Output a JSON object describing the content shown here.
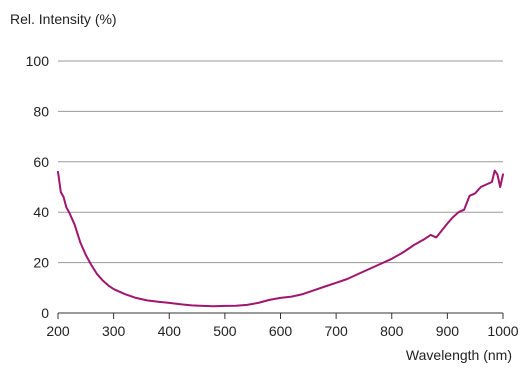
{
  "chart_data": {
    "type": "line",
    "title": "",
    "xlabel": "Wavelength (nm)",
    "ylabel": "Rel. Intensity (%)",
    "xlim": [
      200,
      1000
    ],
    "ylim": [
      0,
      100
    ],
    "x_ticks": [
      "200",
      "300",
      "400",
      "500",
      "600",
      "700",
      "800",
      "900",
      "1000"
    ],
    "y_ticks": [
      "0",
      "20",
      "40",
      "60",
      "80",
      "100"
    ],
    "grid": "horizontal",
    "line_color": "#a0166f",
    "series": [
      {
        "x": [
          200,
          205,
          210,
          215,
          220,
          230,
          240,
          250,
          260,
          270,
          280,
          290,
          300,
          320,
          340,
          360,
          380,
          400,
          420,
          440,
          460,
          480,
          500,
          520,
          540,
          560,
          580,
          600,
          620,
          640,
          660,
          680,
          700,
          720,
          740,
          760,
          780,
          800,
          820,
          840,
          860,
          870,
          880,
          900,
          910,
          920,
          930,
          940,
          950,
          960,
          970,
          980,
          985,
          990,
          995,
          1000
        ],
        "y": [
          56,
          48,
          46,
          42,
          40,
          35,
          28,
          23,
          19,
          15.5,
          13,
          11,
          9.5,
          7.5,
          6,
          5,
          4.5,
          4,
          3.5,
          3,
          2.8,
          2.7,
          2.8,
          2.9,
          3.2,
          4,
          5.2,
          6,
          6.5,
          7.5,
          9,
          10.5,
          12,
          13.5,
          15.5,
          17.5,
          19.5,
          21.5,
          24,
          27,
          29.5,
          31,
          30,
          35.5,
          38,
          40,
          41,
          46.5,
          47.5,
          50,
          51,
          52,
          56.5,
          55,
          50,
          55
        ]
      }
    ]
  }
}
